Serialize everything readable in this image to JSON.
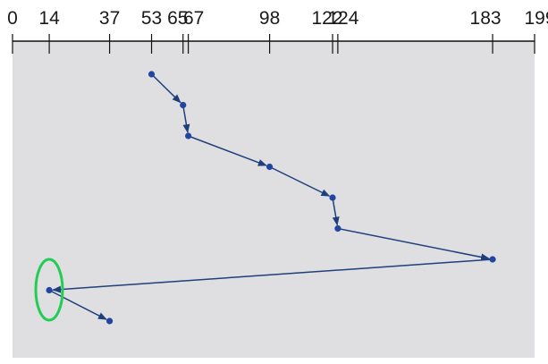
{
  "diagram": {
    "scale": {
      "min": 0,
      "max": 199
    },
    "scale_labels": [
      "0",
      "14",
      "37",
      "53",
      "65",
      "67",
      "98",
      "122",
      "124",
      "183",
      "199"
    ],
    "seek_sequence": [
      53,
      65,
      67,
      98,
      122,
      124,
      183,
      14,
      37
    ],
    "highlighted_value": 14,
    "colors": {
      "panel": "#dfdfe2",
      "path": "#1f3f7a",
      "point": "#2145a0",
      "highlight": "#22cc55",
      "axis": "#111111"
    }
  }
}
